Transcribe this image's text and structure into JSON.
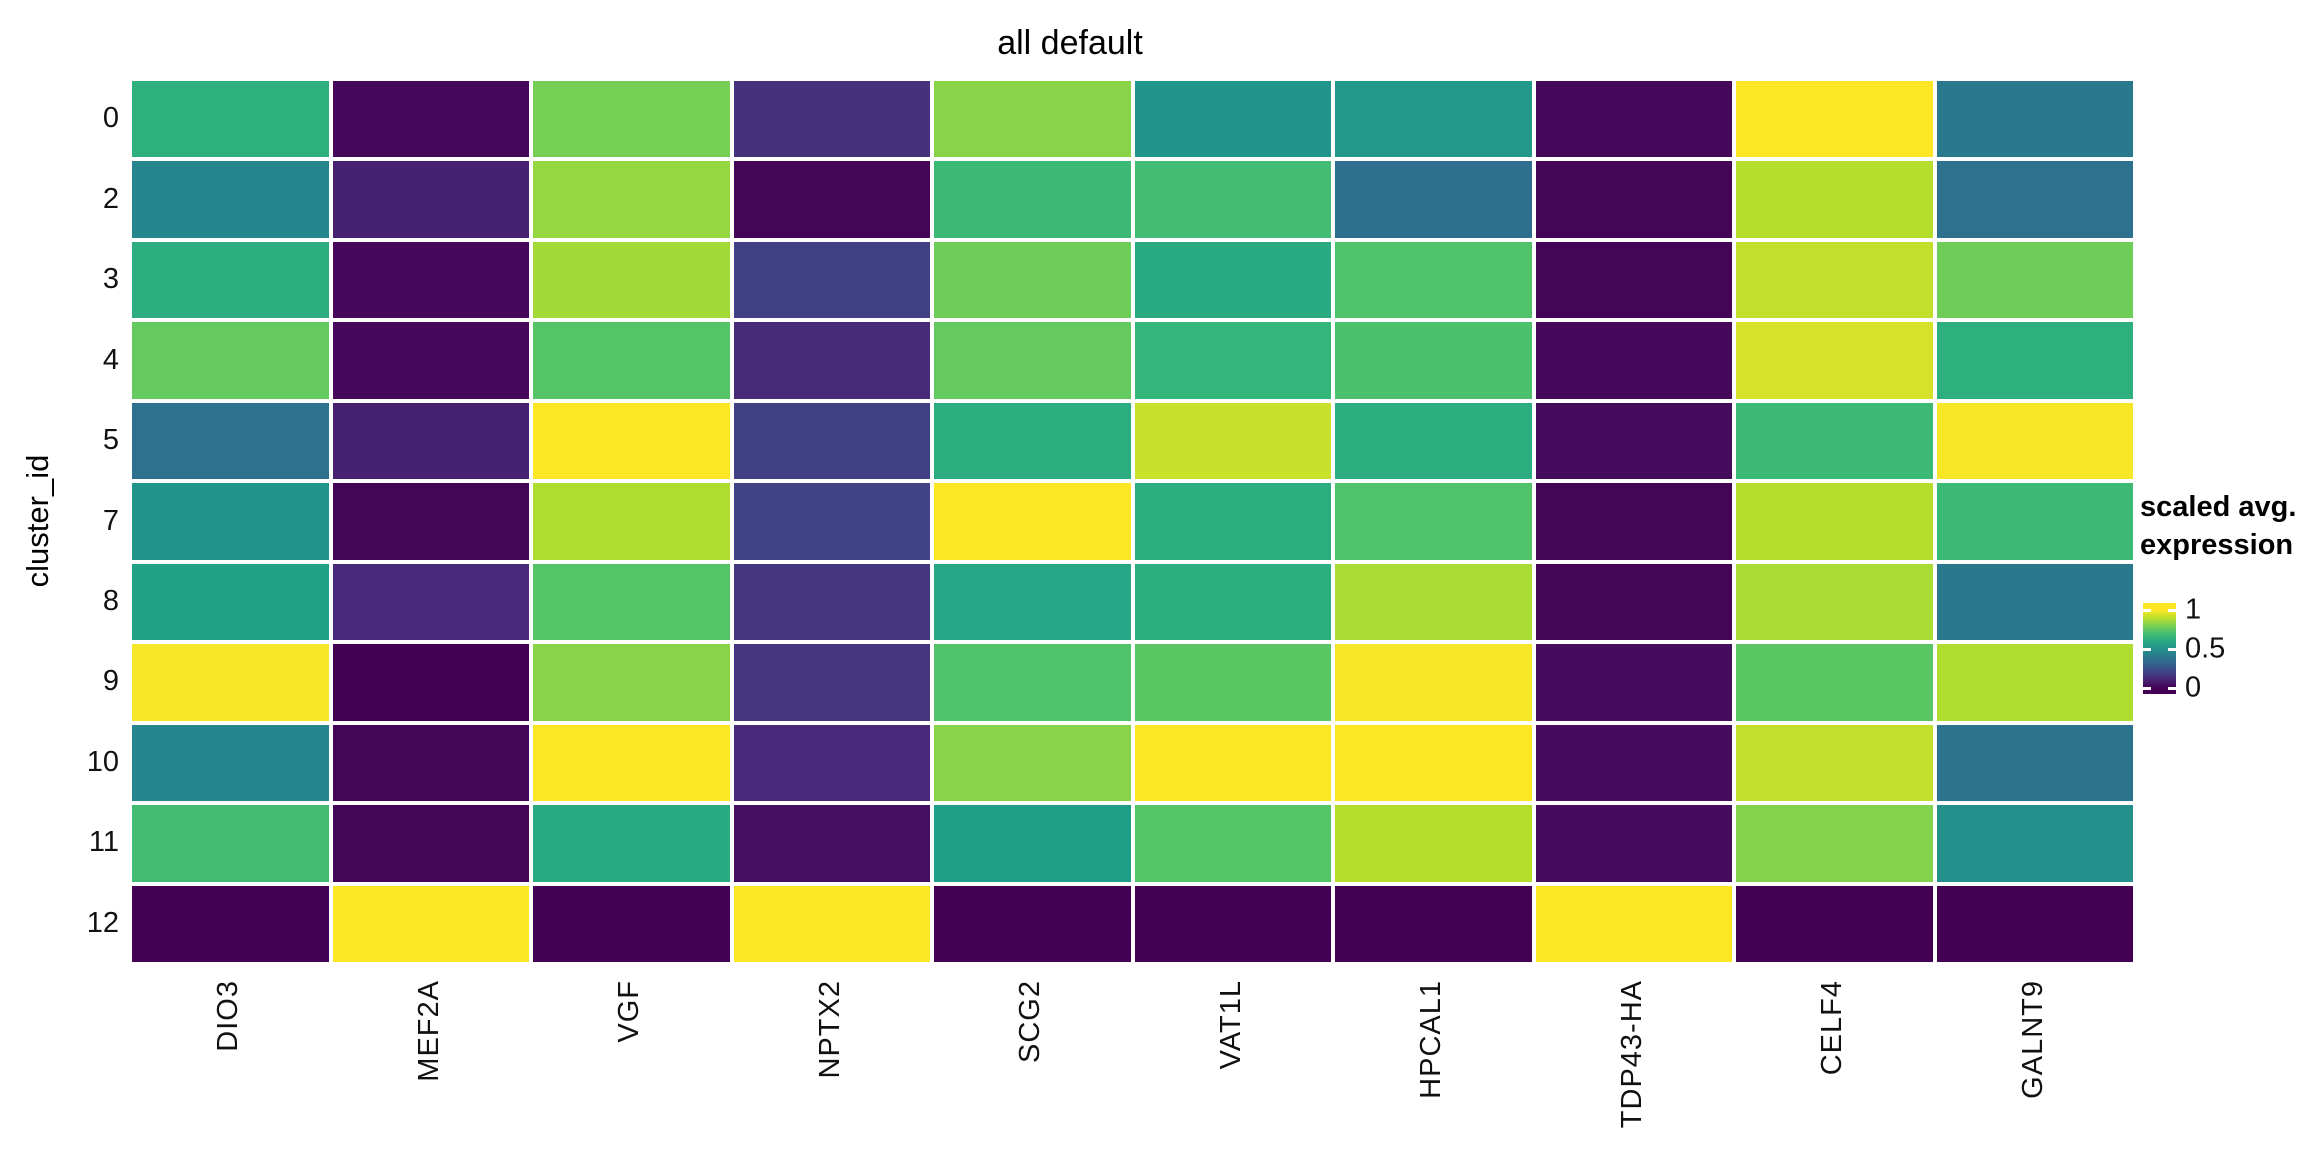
{
  "title": "all default",
  "y_axis_label": "cluster_id",
  "legend": {
    "title_line1": "scaled avg.",
    "title_line2": "expression",
    "ticks": [
      {
        "label": "1",
        "value": 1
      },
      {
        "label": "0.5",
        "value": 0.5
      },
      {
        "label": "0",
        "value": 0
      }
    ]
  },
  "colors": {
    "background": "#ffffff",
    "grid_gap": "#ffffff",
    "viridis_min": "#440154",
    "viridis_mid": "#1f9e89",
    "viridis_max": "#fde725"
  },
  "chart_data": {
    "type": "heatmap",
    "title": "all default",
    "xlabel": "",
    "ylabel": "cluster_id",
    "legend_title": "scaled avg. expression",
    "colormap": "viridis",
    "scale": {
      "min": 0,
      "max": 1,
      "legend_ticks": [
        1,
        0.5,
        0
      ]
    },
    "columns": [
      "DIO3",
      "MEF2A",
      "VGF",
      "NPTX2",
      "SCG2",
      "VAT1L",
      "HPCAL1",
      "TDP43-HA",
      "CELF4",
      "GALNT9"
    ],
    "rows": [
      "0",
      "2",
      "3",
      "4",
      "5",
      "7",
      "8",
      "9",
      "10",
      "11",
      "12"
    ],
    "values": [
      [
        0.63,
        0.02,
        0.79,
        0.14,
        0.82,
        0.52,
        0.53,
        0.02,
        1.0,
        0.4
      ],
      [
        0.46,
        0.09,
        0.84,
        0.01,
        0.68,
        0.69,
        0.36,
        0.01,
        0.89,
        0.37
      ],
      [
        0.62,
        0.02,
        0.86,
        0.19,
        0.78,
        0.61,
        0.72,
        0.01,
        0.91,
        0.78
      ],
      [
        0.76,
        0.02,
        0.73,
        0.12,
        0.76,
        0.66,
        0.71,
        0.02,
        0.94,
        0.63
      ],
      [
        0.37,
        0.09,
        1.0,
        0.19,
        0.62,
        0.92,
        0.62,
        0.03,
        0.68,
        0.99
      ],
      [
        0.52,
        0.01,
        0.88,
        0.2,
        1.0,
        0.62,
        0.72,
        0.01,
        0.89,
        0.68
      ],
      [
        0.57,
        0.11,
        0.73,
        0.16,
        0.59,
        0.62,
        0.87,
        0.01,
        0.87,
        0.4
      ],
      [
        0.99,
        0.0,
        0.82,
        0.15,
        0.72,
        0.74,
        0.99,
        0.03,
        0.74,
        0.88
      ],
      [
        0.46,
        0.01,
        1.0,
        0.11,
        0.82,
        1.0,
        1.0,
        0.03,
        0.91,
        0.38
      ],
      [
        0.69,
        0.01,
        0.61,
        0.04,
        0.56,
        0.73,
        0.89,
        0.03,
        0.81,
        0.5
      ],
      [
        0.0,
        1.0,
        0.0,
        1.0,
        0.0,
        0.0,
        0.0,
        1.0,
        0.0,
        0.0
      ]
    ]
  }
}
